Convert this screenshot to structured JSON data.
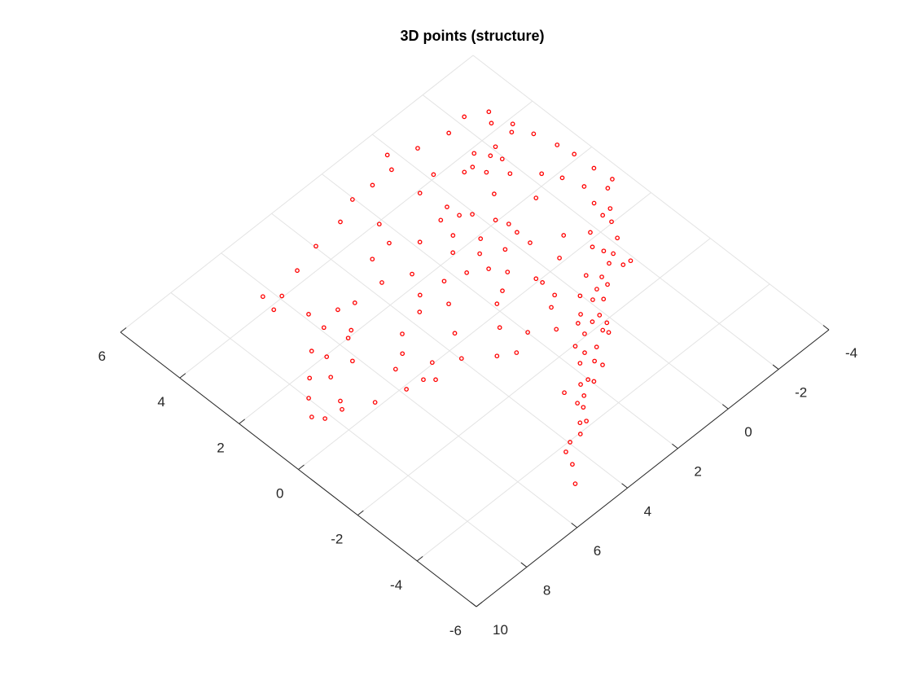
{
  "chart_data": {
    "type": "scatter",
    "title": "3D points (structure)",
    "xlim": [
      -4,
      10
    ],
    "xticks": [
      -4,
      -2,
      0,
      2,
      4,
      6,
      8,
      10
    ],
    "ylim": [
      -6,
      6
    ],
    "yticks": [
      -6,
      -4,
      -2,
      0,
      2,
      4,
      6
    ],
    "grid": true,
    "color": "#ff0000",
    "x": [
      -2.26,
      -2.87,
      -2.63,
      -3.03,
      -2.8,
      -1.54,
      -3.19,
      -0.54,
      -3.37,
      -2.11,
      -1.52,
      -1.78,
      -1.93,
      -3.47,
      0.23,
      0.52,
      -1.14,
      -0.85,
      -1.28,
      -1.71,
      -0.18,
      -2.33,
      -2.63,
      -3.5,
      -3.58,
      -2.84,
      -3.26,
      1.29,
      0.56,
      -0.88,
      -1.6,
      2.05,
      0.38,
      -2.61,
      -2.79,
      -2.48,
      0.07,
      -0.24,
      2.86,
      2.15,
      0.84,
      0.99,
      -0.4,
      -0.34,
      -1.19,
      -1.79,
      -1.46,
      -2.18,
      3.96,
      2.44,
      1.81,
      0.53,
      0.93,
      0.32,
      1.43,
      3.18,
      -1.58,
      -1.61,
      -1.86,
      -1.37,
      1.67,
      2.78,
      2.33,
      1.14,
      0.46,
      -0.53,
      -0.61,
      -0.8,
      -0.47,
      -0.12,
      1.43,
      3.59,
      4.95,
      6.29,
      5.9,
      6.41,
      5.84,
      5.15,
      4.64,
      3.16,
      3.6,
      2.82,
      1.87,
      0.51,
      0.89,
      0.03,
      0.14,
      0.49,
      0.45,
      0.19,
      0.4,
      5.88,
      5.41,
      5.67,
      4.5,
      3.45,
      2.42,
      1.99,
      1.35,
      0.91,
      1.41,
      1.01,
      6.72,
      6.57,
      6.17,
      5.0,
      4.64,
      3.96,
      3.2,
      2.73,
      1.39,
      1.41,
      1.75,
      1.35,
      5.53,
      7.45,
      7.01,
      2.01,
      2.28,
      5.25,
      5.83,
      2.81,
      2.5,
      7.98,
      7.43,
      6.78,
      8.4,
      8.18,
      2.82,
      3.1,
      3.27,
      3.55,
      3.96,
      4.29,
      4.48,
      4.92,
      -2.47,
      -1.7,
      -0.88,
      -0.35,
      0.77,
      0.46,
      1.94,
      2.81,
      5.01,
      7.61,
      0.85,
      0.43,
      -0.35,
      0.35
    ],
    "values": [
      4.82,
      4.51,
      4.22,
      3.84,
      3.68,
      4.73,
      3.27,
      4.93,
      2.63,
      3.64,
      3.86,
      3.53,
      3.26,
      2.14,
      5.3,
      4.91,
      3.59,
      3.62,
      3.24,
      2.81,
      4.09,
      2.27,
      1.83,
      1.5,
      0.95,
      1.27,
      0.83,
      4.9,
      3.92,
      2.64,
      1.84,
      4.93,
      3.16,
      0.74,
      0.35,
      0.04,
      2.57,
      2.05,
      4.65,
      3.94,
      2.98,
      2.44,
      1.74,
      0.97,
      0.56,
      0.17,
      -0.18,
      -0.41,
      4.54,
      3.36,
      2.86,
      1.9,
      1.59,
      1.25,
      2.07,
      3.3,
      -0.46,
      -1.09,
      -1.13,
      -0.82,
      1.4,
      2.3,
      1.6,
      1.11,
      0.09,
      0.14,
      -0.69,
      -1.25,
      -1.17,
      -1.33,
      0.4,
      2.63,
      4.33,
      4.35,
      4.04,
      3.88,
      3.19,
      2.79,
      2.65,
      1.71,
      1.35,
      1.03,
      0.21,
      -0.58,
      -0.79,
      -1.03,
      -1.78,
      -1.44,
      -1.8,
      -2.07,
      -2.31,
      2.64,
      2.12,
      2.0,
      1.17,
      0.29,
      -0.35,
      -0.93,
      -1.35,
      -1.93,
      -2.04,
      -2.42,
      2.34,
      1.96,
      1.43,
      0.74,
      0.04,
      -0.37,
      -0.92,
      -1.18,
      -2.34,
      -2.69,
      -2.49,
      -2.91,
      0.52,
      1.79,
      1.45,
      -2.98,
      -2.96,
      -0.18,
      -0.1,
      -2.86,
      -3.26,
      1.37,
      0.77,
      0.15,
      0.91,
      0.65,
      -3.31,
      -3.85,
      -3.78,
      -4.03,
      -4.03,
      -4.17,
      -4.55,
      -5.02,
      0.33,
      -0.68,
      -0.99,
      -1.5,
      -1.59,
      -2.16,
      -3.12,
      -3.5,
      -0.39,
      0.56,
      0.72,
      -0.1,
      1.42,
      2.77
    ]
  }
}
